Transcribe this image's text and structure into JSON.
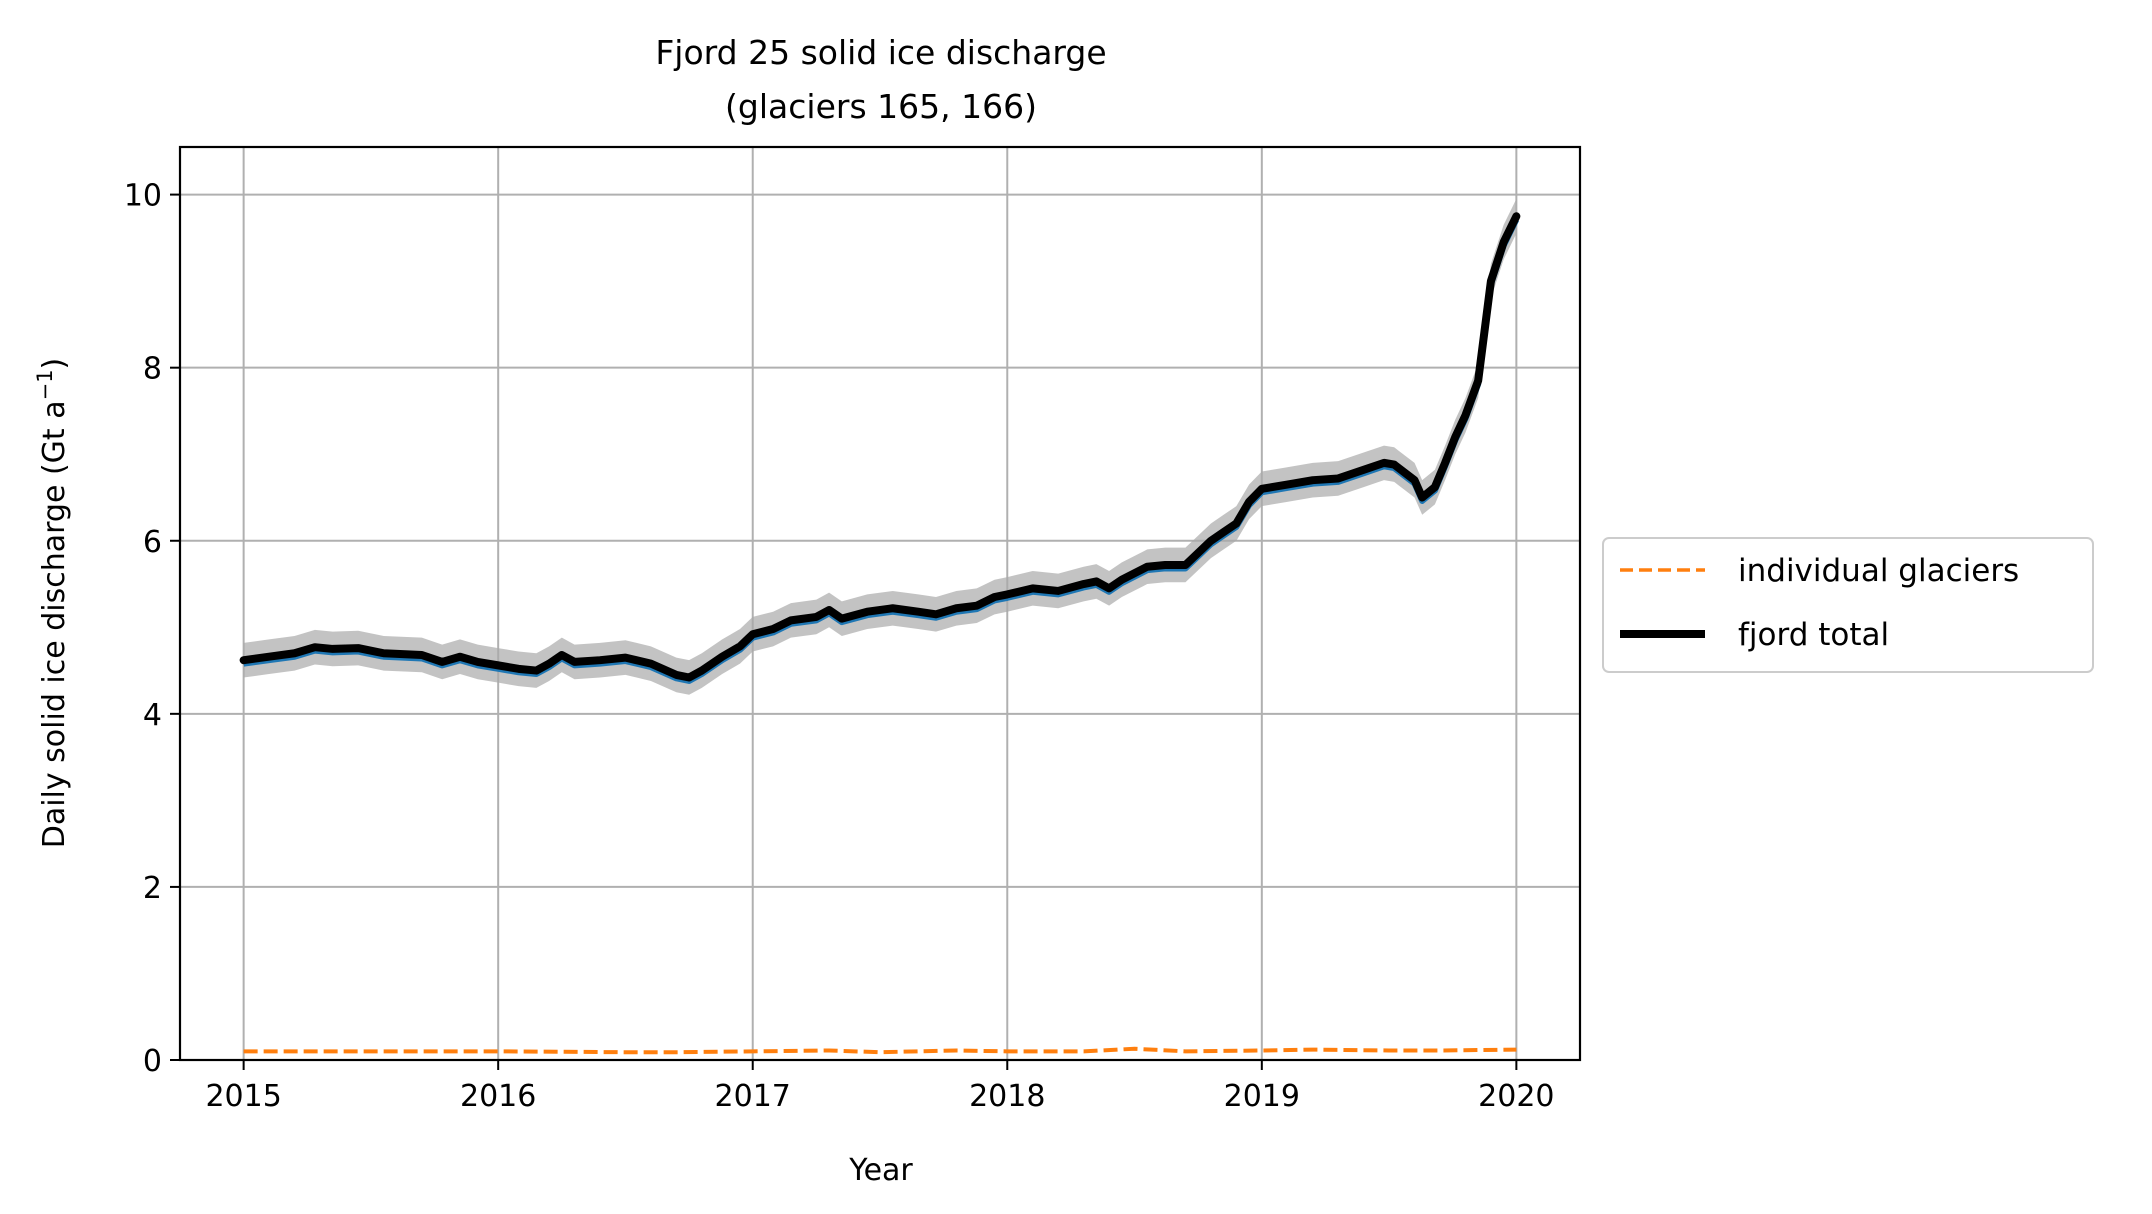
{
  "chart_data": {
    "type": "line",
    "title": "Fjord 25 solid ice discharge",
    "subtitle": "(glaciers 165, 166)",
    "xlabel": "Year",
    "ylabel": "Daily solid ice discharge (Gt a",
    "ylabel_superscript": "−1",
    "ylabel_suffix": ")",
    "xlim": [
      2014.75,
      2020.25
    ],
    "ylim": [
      0,
      10.55
    ],
    "xticks": [
      2015,
      2016,
      2017,
      2018,
      2019,
      2020
    ],
    "xtick_labels": [
      "2015",
      "2016",
      "2017",
      "2018",
      "2019",
      "2020"
    ],
    "yticks": [
      0,
      2,
      4,
      6,
      8,
      10
    ],
    "ytick_labels": [
      "0",
      "2",
      "4",
      "6",
      "8",
      "10"
    ],
    "grid": true,
    "legend": {
      "placement": "right-outside",
      "entries": [
        "individual glaciers",
        "fjord total"
      ]
    },
    "colors": {
      "individual": "#ff7f0e",
      "total": "#000000",
      "individual_band": "#1f77b4",
      "total_band": "#a9a9a9",
      "grid": "#b0b0b0"
    },
    "uncertainty": 0.2,
    "series": [
      {
        "name": "individual glaciers",
        "style": "dashed",
        "x": [
          2015.0,
          2015.5,
          2016.0,
          2016.5,
          2016.7,
          2017.0,
          2017.3,
          2017.5,
          2017.8,
          2018.0,
          2018.3,
          2018.5,
          2018.7,
          2019.0,
          2019.2,
          2019.5,
          2019.7,
          2020.0
        ],
        "y": [
          0.1,
          0.1,
          0.1,
          0.09,
          0.09,
          0.1,
          0.11,
          0.09,
          0.11,
          0.1,
          0.1,
          0.13,
          0.1,
          0.11,
          0.12,
          0.11,
          0.11,
          0.12
        ]
      },
      {
        "name": "fjord total",
        "style": "solid",
        "x": [
          2015.0,
          2015.1,
          2015.2,
          2015.28,
          2015.35,
          2015.45,
          2015.55,
          2015.7,
          2015.78,
          2015.85,
          2015.92,
          2016.0,
          2016.08,
          2016.15,
          2016.2,
          2016.25,
          2016.3,
          2016.4,
          2016.5,
          2016.6,
          2016.7,
          2016.75,
          2016.8,
          2016.88,
          2016.95,
          2017.0,
          2017.08,
          2017.15,
          2017.25,
          2017.3,
          2017.35,
          2017.45,
          2017.55,
          2017.65,
          2017.72,
          2017.8,
          2017.88,
          2017.95,
          2018.0,
          2018.1,
          2018.2,
          2018.3,
          2018.35,
          2018.4,
          2018.45,
          2018.55,
          2018.62,
          2018.7,
          2018.8,
          2018.85,
          2018.9,
          2018.95,
          2019.0,
          2019.1,
          2019.2,
          2019.3,
          2019.4,
          2019.48,
          2019.52,
          2019.6,
          2019.63,
          2019.68,
          2019.72,
          2019.76,
          2019.8,
          2019.85,
          2019.9,
          2019.95,
          2020.0
        ],
        "y": [
          4.62,
          4.66,
          4.7,
          4.77,
          4.75,
          4.76,
          4.7,
          4.68,
          4.6,
          4.66,
          4.6,
          4.56,
          4.52,
          4.5,
          4.58,
          4.68,
          4.6,
          4.62,
          4.65,
          4.58,
          4.45,
          4.42,
          4.5,
          4.66,
          4.78,
          4.92,
          4.98,
          5.08,
          5.12,
          5.2,
          5.1,
          5.18,
          5.22,
          5.18,
          5.15,
          5.22,
          5.25,
          5.35,
          5.38,
          5.45,
          5.42,
          5.5,
          5.53,
          5.45,
          5.55,
          5.7,
          5.72,
          5.72,
          6.0,
          6.1,
          6.2,
          6.45,
          6.6,
          6.65,
          6.7,
          6.72,
          6.82,
          6.9,
          6.88,
          6.7,
          6.5,
          6.62,
          6.9,
          7.2,
          7.45,
          7.85,
          9.0,
          9.45,
          9.75
        ]
      }
    ]
  }
}
